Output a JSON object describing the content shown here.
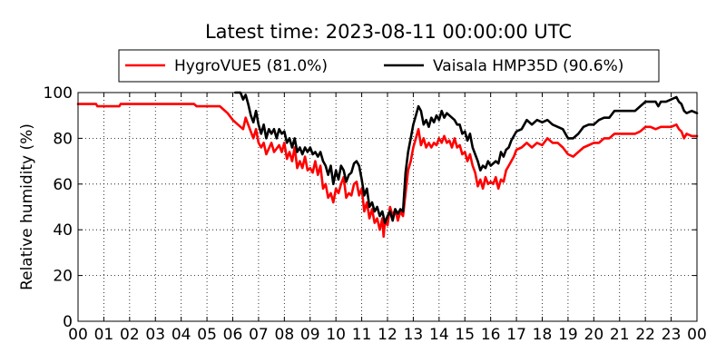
{
  "chart_data": {
    "type": "line",
    "title": "Latest time: 2023-08-11 00:00:00 UTC",
    "xlabel": "",
    "ylabel": "Relative humidity (%)",
    "xlim": [
      0,
      24
    ],
    "ylim": [
      0,
      100
    ],
    "x_tick_labels": [
      "00",
      "01",
      "02",
      "03",
      "04",
      "05",
      "06",
      "07",
      "08",
      "09",
      "10",
      "11",
      "12",
      "13",
      "14",
      "15",
      "16",
      "17",
      "18",
      "19",
      "20",
      "21",
      "22",
      "23",
      "00"
    ],
    "y_ticks": [
      0,
      20,
      40,
      60,
      80,
      100
    ],
    "grid": true,
    "legend_position": "top",
    "series": [
      {
        "name": "HygroVUE5 (81.0%)",
        "color": "#ff0000",
        "points": [
          [
            0,
            95
          ],
          [
            0.7,
            95
          ],
          [
            0.75,
            94
          ],
          [
            1.6,
            94
          ],
          [
            1.65,
            95
          ],
          [
            2.5,
            95
          ],
          [
            3.5,
            95
          ],
          [
            4.5,
            95
          ],
          [
            4.6,
            94
          ],
          [
            5.5,
            94
          ],
          [
            5.6,
            93
          ],
          [
            5.8,
            91
          ],
          [
            6.0,
            88
          ],
          [
            6.2,
            86
          ],
          [
            6.4,
            84
          ],
          [
            6.5,
            89
          ],
          [
            6.6,
            86
          ],
          [
            6.8,
            80
          ],
          [
            6.9,
            84
          ],
          [
            7.0,
            78
          ],
          [
            7.1,
            76
          ],
          [
            7.2,
            78
          ],
          [
            7.3,
            73
          ],
          [
            7.5,
            78
          ],
          [
            7.6,
            74
          ],
          [
            7.8,
            77
          ],
          [
            7.9,
            74
          ],
          [
            8.0,
            78
          ],
          [
            8.1,
            71
          ],
          [
            8.2,
            74
          ],
          [
            8.3,
            70
          ],
          [
            8.4,
            76
          ],
          [
            8.5,
            67
          ],
          [
            8.6,
            70
          ],
          [
            8.7,
            67
          ],
          [
            8.8,
            72
          ],
          [
            8.9,
            66
          ],
          [
            9.0,
            67
          ],
          [
            9.1,
            65
          ],
          [
            9.2,
            70
          ],
          [
            9.3,
            64
          ],
          [
            9.4,
            68
          ],
          [
            9.5,
            58
          ],
          [
            9.6,
            60
          ],
          [
            9.7,
            54
          ],
          [
            9.8,
            56
          ],
          [
            9.9,
            52
          ],
          [
            10.0,
            58
          ],
          [
            10.1,
            56
          ],
          [
            10.2,
            60
          ],
          [
            10.3,
            63
          ],
          [
            10.4,
            54
          ],
          [
            10.5,
            56
          ],
          [
            10.6,
            55
          ],
          [
            10.7,
            60
          ],
          [
            10.8,
            61
          ],
          [
            10.9,
            55
          ],
          [
            11.0,
            58
          ],
          [
            11.1,
            48
          ],
          [
            11.2,
            52
          ],
          [
            11.3,
            45
          ],
          [
            11.4,
            49
          ],
          [
            11.5,
            43
          ],
          [
            11.6,
            45
          ],
          [
            11.7,
            40
          ],
          [
            11.8,
            45
          ],
          [
            11.85,
            37
          ],
          [
            11.9,
            44
          ],
          [
            12.0,
            42
          ],
          [
            12.1,
            50
          ],
          [
            12.2,
            46
          ],
          [
            12.3,
            49
          ],
          [
            12.4,
            44
          ],
          [
            12.5,
            48
          ],
          [
            12.6,
            46
          ],
          [
            12.7,
            56
          ],
          [
            12.8,
            66
          ],
          [
            12.9,
            70
          ],
          [
            13.0,
            76
          ],
          [
            13.1,
            80
          ],
          [
            13.2,
            84
          ],
          [
            13.3,
            77
          ],
          [
            13.4,
            80
          ],
          [
            13.5,
            76
          ],
          [
            13.6,
            78
          ],
          [
            13.7,
            76
          ],
          [
            13.8,
            78
          ],
          [
            13.9,
            77
          ],
          [
            14.0,
            80
          ],
          [
            14.1,
            78
          ],
          [
            14.2,
            81
          ],
          [
            14.3,
            78
          ],
          [
            14.4,
            79
          ],
          [
            14.5,
            76
          ],
          [
            14.6,
            80
          ],
          [
            14.7,
            76
          ],
          [
            14.8,
            77
          ],
          [
            14.9,
            73
          ],
          [
            15.0,
            74
          ],
          [
            15.1,
            70
          ],
          [
            15.2,
            73
          ],
          [
            15.3,
            68
          ],
          [
            15.4,
            65
          ],
          [
            15.5,
            59
          ],
          [
            15.6,
            62
          ],
          [
            15.7,
            58
          ],
          [
            15.8,
            63
          ],
          [
            15.9,
            60
          ],
          [
            16.0,
            61
          ],
          [
            16.1,
            60
          ],
          [
            16.2,
            63
          ],
          [
            16.3,
            58
          ],
          [
            16.4,
            62
          ],
          [
            16.5,
            61
          ],
          [
            16.6,
            66
          ],
          [
            16.7,
            68
          ],
          [
            16.8,
            70
          ],
          [
            16.9,
            72
          ],
          [
            17.0,
            75
          ],
          [
            17.2,
            76
          ],
          [
            17.4,
            78
          ],
          [
            17.6,
            76
          ],
          [
            17.8,
            78
          ],
          [
            18.0,
            77
          ],
          [
            18.2,
            80
          ],
          [
            18.4,
            78
          ],
          [
            18.6,
            78
          ],
          [
            18.8,
            76
          ],
          [
            19.0,
            73
          ],
          [
            19.2,
            72
          ],
          [
            19.4,
            74
          ],
          [
            19.6,
            76
          ],
          [
            19.8,
            77
          ],
          [
            20.0,
            78
          ],
          [
            20.2,
            78
          ],
          [
            20.4,
            80
          ],
          [
            20.6,
            80
          ],
          [
            20.8,
            82
          ],
          [
            21.0,
            82
          ],
          [
            21.2,
            82
          ],
          [
            21.4,
            82
          ],
          [
            21.6,
            82
          ],
          [
            21.8,
            83
          ],
          [
            22.0,
            85
          ],
          [
            22.2,
            85
          ],
          [
            22.4,
            84
          ],
          [
            22.6,
            85
          ],
          [
            22.8,
            85
          ],
          [
            23.0,
            85
          ],
          [
            23.2,
            86
          ],
          [
            23.3,
            84
          ],
          [
            23.4,
            83
          ],
          [
            23.5,
            80
          ],
          [
            23.6,
            82
          ],
          [
            23.8,
            81
          ],
          [
            24.0,
            81
          ]
        ]
      },
      {
        "name": "Vaisala HMP35D (90.6%)",
        "color": "#000000",
        "points": [
          [
            6.1,
            100
          ],
          [
            6.3,
            100
          ],
          [
            6.4,
            97
          ],
          [
            6.5,
            99
          ],
          [
            6.6,
            95
          ],
          [
            6.7,
            90
          ],
          [
            6.8,
            87
          ],
          [
            6.9,
            92
          ],
          [
            7.0,
            86
          ],
          [
            7.1,
            82
          ],
          [
            7.2,
            86
          ],
          [
            7.3,
            80
          ],
          [
            7.4,
            84
          ],
          [
            7.5,
            82
          ],
          [
            7.6,
            84
          ],
          [
            7.7,
            80
          ],
          [
            7.8,
            84
          ],
          [
            7.9,
            82
          ],
          [
            8.0,
            83
          ],
          [
            8.1,
            78
          ],
          [
            8.2,
            80
          ],
          [
            8.3,
            76
          ],
          [
            8.4,
            80
          ],
          [
            8.5,
            74
          ],
          [
            8.6,
            76
          ],
          [
            8.7,
            73
          ],
          [
            8.8,
            76
          ],
          [
            8.9,
            74
          ],
          [
            9.0,
            76
          ],
          [
            9.1,
            73
          ],
          [
            9.2,
            74
          ],
          [
            9.3,
            72
          ],
          [
            9.4,
            74
          ],
          [
            9.5,
            70
          ],
          [
            9.6,
            68
          ],
          [
            9.7,
            64
          ],
          [
            9.8,
            68
          ],
          [
            9.9,
            60
          ],
          [
            10.0,
            66
          ],
          [
            10.1,
            62
          ],
          [
            10.2,
            68
          ],
          [
            10.3,
            66
          ],
          [
            10.4,
            61
          ],
          [
            10.5,
            64
          ],
          [
            10.6,
            65
          ],
          [
            10.7,
            69
          ],
          [
            10.8,
            70
          ],
          [
            10.9,
            68
          ],
          [
            11.0,
            62
          ],
          [
            11.1,
            55
          ],
          [
            11.2,
            58
          ],
          [
            11.3,
            50
          ],
          [
            11.4,
            52
          ],
          [
            11.5,
            48
          ],
          [
            11.6,
            50
          ],
          [
            11.7,
            46
          ],
          [
            11.8,
            48
          ],
          [
            11.9,
            43
          ],
          [
            12.0,
            46
          ],
          [
            12.1,
            48
          ],
          [
            12.2,
            44
          ],
          [
            12.3,
            49
          ],
          [
            12.4,
            47
          ],
          [
            12.5,
            49
          ],
          [
            12.6,
            48
          ],
          [
            12.7,
            65
          ],
          [
            12.8,
            74
          ],
          [
            12.9,
            80
          ],
          [
            13.0,
            86
          ],
          [
            13.1,
            90
          ],
          [
            13.2,
            94
          ],
          [
            13.3,
            92
          ],
          [
            13.4,
            86
          ],
          [
            13.5,
            88
          ],
          [
            13.6,
            85
          ],
          [
            13.7,
            89
          ],
          [
            13.8,
            87
          ],
          [
            13.9,
            90
          ],
          [
            14.0,
            88
          ],
          [
            14.1,
            92
          ],
          [
            14.2,
            89
          ],
          [
            14.3,
            91
          ],
          [
            14.4,
            90
          ],
          [
            14.5,
            89
          ],
          [
            14.6,
            88
          ],
          [
            14.7,
            86
          ],
          [
            14.8,
            86
          ],
          [
            14.9,
            82
          ],
          [
            15.0,
            83
          ],
          [
            15.1,
            79
          ],
          [
            15.2,
            82
          ],
          [
            15.3,
            76
          ],
          [
            15.4,
            73
          ],
          [
            15.5,
            70
          ],
          [
            15.6,
            66
          ],
          [
            15.7,
            68
          ],
          [
            15.8,
            67
          ],
          [
            15.9,
            70
          ],
          [
            16.0,
            68
          ],
          [
            16.1,
            69
          ],
          [
            16.2,
            70
          ],
          [
            16.3,
            69
          ],
          [
            16.4,
            74
          ],
          [
            16.5,
            72
          ],
          [
            16.6,
            75
          ],
          [
            16.7,
            76
          ],
          [
            16.8,
            79
          ],
          [
            16.9,
            81
          ],
          [
            17.0,
            83
          ],
          [
            17.2,
            84
          ],
          [
            17.4,
            88
          ],
          [
            17.6,
            86
          ],
          [
            17.8,
            88
          ],
          [
            18.0,
            87
          ],
          [
            18.2,
            88
          ],
          [
            18.4,
            86
          ],
          [
            18.6,
            85
          ],
          [
            18.8,
            84
          ],
          [
            19.0,
            80
          ],
          [
            19.2,
            80
          ],
          [
            19.4,
            82
          ],
          [
            19.6,
            85
          ],
          [
            19.8,
            86
          ],
          [
            20.0,
            86
          ],
          [
            20.2,
            88
          ],
          [
            20.4,
            89
          ],
          [
            20.6,
            89
          ],
          [
            20.8,
            92
          ],
          [
            21.0,
            92
          ],
          [
            21.2,
            92
          ],
          [
            21.4,
            92
          ],
          [
            21.6,
            92
          ],
          [
            21.8,
            94
          ],
          [
            22.0,
            96
          ],
          [
            22.2,
            96
          ],
          [
            22.4,
            96
          ],
          [
            22.5,
            94
          ],
          [
            22.6,
            96
          ],
          [
            22.8,
            96
          ],
          [
            23.0,
            97
          ],
          [
            23.2,
            98
          ],
          [
            23.3,
            96
          ],
          [
            23.4,
            95
          ],
          [
            23.5,
            92
          ],
          [
            23.6,
            91
          ],
          [
            23.8,
            92
          ],
          [
            24.0,
            91
          ]
        ]
      }
    ]
  }
}
